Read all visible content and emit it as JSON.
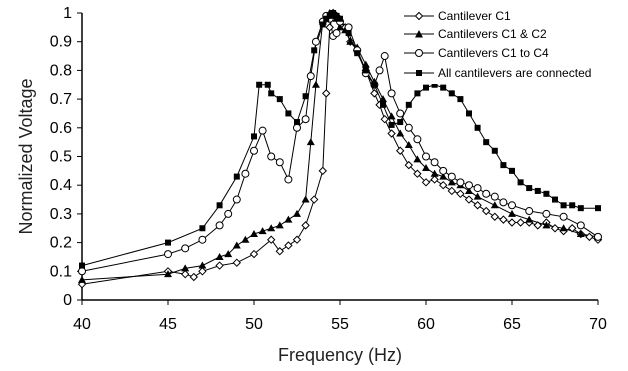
{
  "chart_data": {
    "type": "line",
    "title": "",
    "xlabel": "Frequency (Hz)",
    "ylabel": "Normalized Voltage",
    "xlim": [
      40,
      70
    ],
    "ylim": [
      0,
      1
    ],
    "x_ticks": [
      "40",
      "45",
      "50",
      "55",
      "60",
      "65",
      "70"
    ],
    "y_ticks": [
      "0",
      "0.1",
      "0.2",
      "0.3",
      "0.4",
      "0.5",
      "0.6",
      "0.7",
      "0.8",
      "0.9",
      "1"
    ],
    "grid": false,
    "legend_position": "top-right",
    "series": [
      {
        "name": "Cantilever C1",
        "marker": "diamond-open",
        "x": [
          40,
          45,
          46,
          46.5,
          47,
          48,
          49,
          50,
          51,
          51.5,
          52,
          52.5,
          53,
          53.5,
          54,
          54.2,
          54.4,
          54.6,
          54.8,
          55,
          55.3,
          55.6,
          56,
          56.5,
          57,
          57.3,
          57.6,
          58,
          58.5,
          59,
          59.5,
          60,
          60.5,
          61,
          61.5,
          62,
          62.5,
          63,
          63.5,
          64,
          64.5,
          65,
          65.5,
          66,
          66.5,
          67,
          67.5,
          68,
          68.5,
          69,
          69.5,
          70
        ],
        "y": [
          0.055,
          0.1,
          0.09,
          0.08,
          0.1,
          0.12,
          0.13,
          0.16,
          0.21,
          0.17,
          0.19,
          0.21,
          0.26,
          0.35,
          0.45,
          0.72,
          0.95,
          1.0,
          0.99,
          0.97,
          0.95,
          0.9,
          0.87,
          0.8,
          0.72,
          0.68,
          0.63,
          0.58,
          0.52,
          0.47,
          0.44,
          0.41,
          0.42,
          0.4,
          0.38,
          0.37,
          0.35,
          0.33,
          0.31,
          0.29,
          0.28,
          0.27,
          0.27,
          0.27,
          0.26,
          0.27,
          0.25,
          0.24,
          0.25,
          0.23,
          0.22,
          0.21
        ]
      },
      {
        "name": "Cantilevers C1 & C2",
        "marker": "triangle-filled",
        "x": [
          40,
          45,
          46,
          47,
          48,
          48.5,
          49,
          49.5,
          50,
          50.5,
          51,
          51.5,
          52,
          52.5,
          53,
          53.3,
          53.6,
          54,
          54.2,
          54.4,
          54.6,
          54.8,
          55,
          55.3,
          55.6,
          56,
          56.5,
          57,
          57.5,
          58,
          58.5,
          59,
          59.5,
          60,
          60.5,
          61,
          61.5,
          62,
          62.5,
          63,
          64,
          65,
          66,
          67,
          68,
          69,
          70
        ],
        "y": [
          0.07,
          0.09,
          0.11,
          0.12,
          0.15,
          0.16,
          0.19,
          0.21,
          0.23,
          0.24,
          0.25,
          0.26,
          0.28,
          0.3,
          0.35,
          0.55,
          0.75,
          0.97,
          0.99,
          1.0,
          0.99,
          0.98,
          0.95,
          0.94,
          0.9,
          0.88,
          0.82,
          0.76,
          0.7,
          0.64,
          0.58,
          0.54,
          0.49,
          0.46,
          0.44,
          0.43,
          0.41,
          0.4,
          0.38,
          0.36,
          0.33,
          0.3,
          0.28,
          0.26,
          0.25,
          0.23,
          0.22
        ]
      },
      {
        "name": "Cantilevers C1 to C4",
        "marker": "circle-open",
        "x": [
          40,
          45,
          46,
          47,
          48,
          48.5,
          49,
          49.5,
          50,
          50.5,
          51,
          51.5,
          52,
          52.5,
          53,
          53.3,
          53.6,
          54,
          54.2,
          54.4,
          54.6,
          54.8,
          55,
          55.5,
          56,
          56.5,
          57,
          57.3,
          57.6,
          58,
          58.5,
          59,
          59.5,
          60,
          60.5,
          61,
          61.5,
          62,
          62.5,
          63,
          63.5,
          64,
          64.5,
          65,
          66,
          67,
          68,
          69,
          70
        ],
        "y": [
          0.1,
          0.16,
          0.18,
          0.21,
          0.26,
          0.3,
          0.35,
          0.44,
          0.52,
          0.59,
          0.5,
          0.48,
          0.42,
          0.6,
          0.63,
          0.78,
          0.9,
          0.97,
          0.99,
          0.98,
          0.92,
          0.93,
          0.97,
          0.95,
          0.87,
          0.79,
          0.75,
          0.8,
          0.85,
          0.72,
          0.65,
          0.6,
          0.56,
          0.5,
          0.48,
          0.45,
          0.43,
          0.41,
          0.4,
          0.39,
          0.37,
          0.36,
          0.34,
          0.33,
          0.31,
          0.3,
          0.29,
          0.26,
          0.22
        ]
      },
      {
        "name": "All cantilevers are connected",
        "marker": "square-filled",
        "x": [
          40,
          45,
          47,
          48,
          49,
          50,
          50.3,
          50.8,
          51,
          51.5,
          52,
          52.5,
          53,
          53.5,
          54,
          54.2,
          54.4,
          54.6,
          54.8,
          55,
          55.5,
          56,
          56.5,
          57,
          57.5,
          58,
          58.5,
          59,
          59.5,
          60,
          60.5,
          61,
          61.5,
          62,
          62.5,
          63,
          63.5,
          64,
          64.5,
          65,
          65.5,
          66,
          66.5,
          67,
          67.5,
          68,
          68.5,
          69,
          70
        ],
        "y": [
          0.12,
          0.2,
          0.25,
          0.33,
          0.43,
          0.57,
          0.75,
          0.75,
          0.72,
          0.7,
          0.65,
          0.62,
          0.71,
          0.87,
          0.96,
          0.98,
          0.99,
          1.0,
          0.99,
          0.98,
          0.93,
          0.86,
          0.8,
          0.75,
          0.68,
          0.61,
          0.62,
          0.68,
          0.72,
          0.74,
          0.75,
          0.74,
          0.72,
          0.7,
          0.65,
          0.6,
          0.55,
          0.52,
          0.47,
          0.45,
          0.41,
          0.39,
          0.38,
          0.37,
          0.35,
          0.33,
          0.33,
          0.32,
          0.32
        ]
      }
    ]
  }
}
